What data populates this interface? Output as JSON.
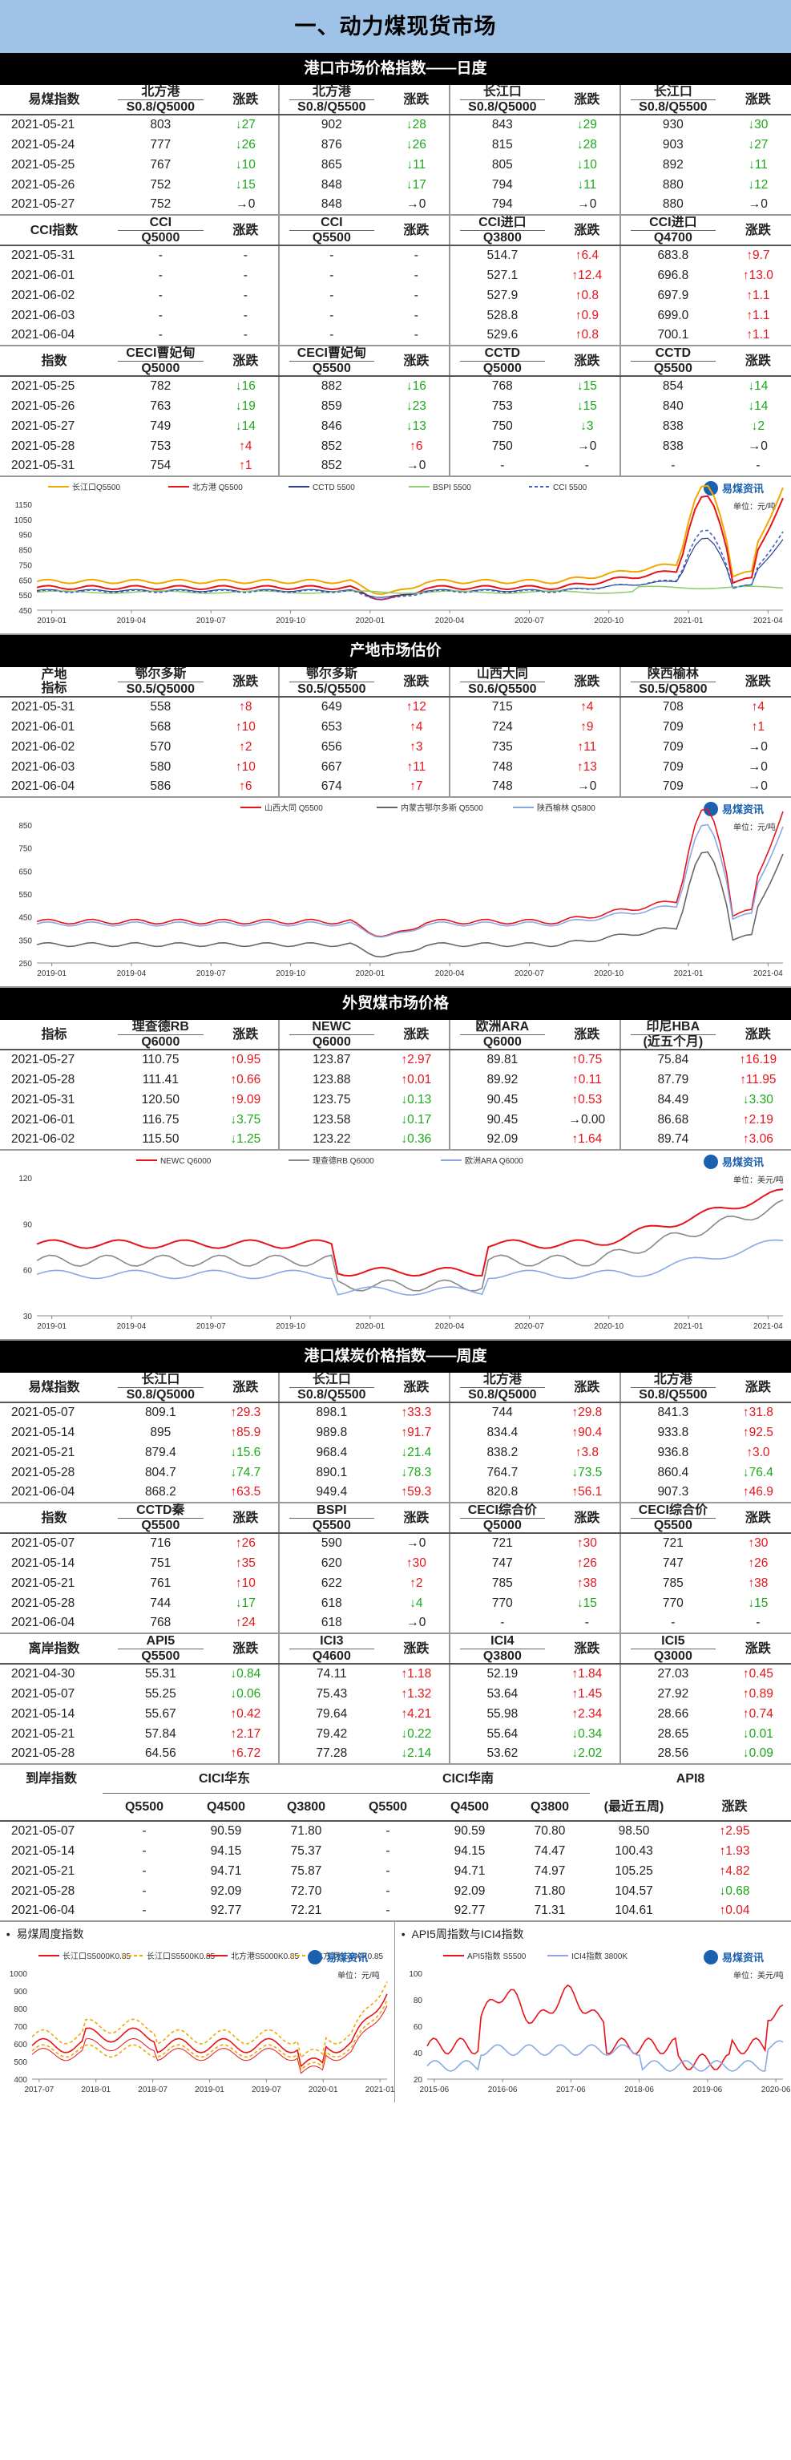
{
  "title": "一、动力煤现货市场",
  "sec1": {
    "bar": "港口市场价格指数——日度",
    "t1": {
      "h1": [
        "易煤指数",
        "北方港",
        "涨跌",
        "北方港",
        "涨跌",
        "长江口",
        "涨跌",
        "长江口",
        "涨跌"
      ],
      "h2": [
        "",
        "S0.8/Q5000",
        "",
        "S0.8/Q5500",
        "",
        "S0.8/Q5000",
        "",
        "S0.8/Q5500",
        ""
      ],
      "rows": [
        [
          "2021-05-21",
          "803",
          "↓27",
          "902",
          "↓28",
          "843",
          "↓29",
          "930",
          "↓30"
        ],
        [
          "2021-05-24",
          "777",
          "↓26",
          "876",
          "↓26",
          "815",
          "↓28",
          "903",
          "↓27"
        ],
        [
          "2021-05-25",
          "767",
          "↓10",
          "865",
          "↓11",
          "805",
          "↓10",
          "892",
          "↓11"
        ],
        [
          "2021-05-26",
          "752",
          "↓15",
          "848",
          "↓17",
          "794",
          "↓11",
          "880",
          "↓12"
        ],
        [
          "2021-05-27",
          "752",
          "→0",
          "848",
          "→0",
          "794",
          "→0",
          "880",
          "→0"
        ]
      ]
    },
    "t2": {
      "h1": [
        "CCI指数",
        "CCI",
        "涨跌",
        "CCI",
        "涨跌",
        "CCI进口",
        "涨跌",
        "CCI进口",
        "涨跌"
      ],
      "h2": [
        "",
        "Q5000",
        "",
        "Q5500",
        "",
        "Q3800",
        "",
        "Q4700",
        ""
      ],
      "rows": [
        [
          "2021-05-31",
          "-",
          "-",
          "-",
          "-",
          "514.7",
          "↑6.4",
          "683.8",
          "↑9.7"
        ],
        [
          "2021-06-01",
          "-",
          "-",
          "-",
          "-",
          "527.1",
          "↑12.4",
          "696.8",
          "↑13.0"
        ],
        [
          "2021-06-02",
          "-",
          "-",
          "-",
          "-",
          "527.9",
          "↑0.8",
          "697.9",
          "↑1.1"
        ],
        [
          "2021-06-03",
          "-",
          "-",
          "-",
          "-",
          "528.8",
          "↑0.9",
          "699.0",
          "↑1.1"
        ],
        [
          "2021-06-04",
          "-",
          "-",
          "-",
          "-",
          "529.6",
          "↑0.8",
          "700.1",
          "↑1.1"
        ]
      ]
    },
    "t3": {
      "h1": [
        "指数",
        "CECI曹妃甸",
        "涨跌",
        "CECI曹妃甸",
        "涨跌",
        "CCTD",
        "涨跌",
        "CCTD",
        "涨跌"
      ],
      "h2": [
        "",
        "Q5000",
        "",
        "Q5500",
        "",
        "Q5000",
        "",
        "Q5500",
        ""
      ],
      "rows": [
        [
          "2021-05-25",
          "782",
          "↓16",
          "882",
          "↓16",
          "768",
          "↓15",
          "854",
          "↓14"
        ],
        [
          "2021-05-26",
          "763",
          "↓19",
          "859",
          "↓23",
          "753",
          "↓15",
          "840",
          "↓14"
        ],
        [
          "2021-05-27",
          "749",
          "↓14",
          "846",
          "↓13",
          "750",
          "↓3",
          "838",
          "↓2"
        ],
        [
          "2021-05-28",
          "753",
          "↑4",
          "852",
          "↑6",
          "750",
          "→0",
          "838",
          "→0"
        ],
        [
          "2021-05-31",
          "754",
          "↑1",
          "852",
          "→0",
          "-",
          "-",
          "-",
          "-"
        ]
      ]
    }
  },
  "chart1": {
    "legend": [
      "长江口Q5500",
      "北方港 Q5500",
      "CCTD 5500",
      "BSPI 5500",
      "CCI 5500"
    ],
    "unit": "单位：元/吨",
    "logo": "易煤资讯",
    "yticks": [
      "1150",
      "1050",
      "950",
      "850",
      "750",
      "650",
      "550",
      "450"
    ],
    "xticks": [
      "2019-01",
      "2019-04",
      "2019-07",
      "2019-10",
      "2020-01",
      "2020-04",
      "2020-07",
      "2020-10",
      "2021-01",
      "2021-04"
    ]
  },
  "sec2": {
    "bar": "产地市场估价",
    "h1": [
      "产地",
      "鄂尔多斯",
      "涨跌",
      "鄂尔多斯",
      "涨跌",
      "山西大同",
      "涨跌",
      "陕西榆林",
      "涨跌"
    ],
    "h2": [
      "指标",
      "S0.5/Q5000",
      "",
      "S0.5/Q5500",
      "",
      "S0.6/Q5500",
      "",
      "S0.5/Q5800",
      ""
    ],
    "rows": [
      [
        "2021-05-31",
        "558",
        "↑8",
        "649",
        "↑12",
        "715",
        "↑4",
        "708",
        "↑4"
      ],
      [
        "2021-06-01",
        "568",
        "↑10",
        "653",
        "↑4",
        "724",
        "↑9",
        "709",
        "↑1"
      ],
      [
        "2021-06-02",
        "570",
        "↑2",
        "656",
        "↑3",
        "735",
        "↑11",
        "709",
        "→0"
      ],
      [
        "2021-06-03",
        "580",
        "↑10",
        "667",
        "↑11",
        "748",
        "↑13",
        "709",
        "→0"
      ],
      [
        "2021-06-04",
        "586",
        "↑6",
        "674",
        "↑7",
        "748",
        "→0",
        "709",
        "→0"
      ]
    ]
  },
  "chart2": {
    "legend": [
      "山西大同 Q5500",
      "内蒙古鄂尔多斯 Q5500",
      "陕西榆林 Q5800"
    ],
    "unit": "单位：元/吨",
    "logo": "易煤资讯",
    "yticks": [
      "850",
      "750",
      "650",
      "550",
      "450",
      "350",
      "250"
    ],
    "xticks": [
      "2019-01",
      "2019-04",
      "2019-07",
      "2019-10",
      "2020-01",
      "2020-04",
      "2020-07",
      "2020-10",
      "2021-01",
      "2021-04"
    ]
  },
  "sec3": {
    "bar": "外贸煤市场价格",
    "h1": [
      "指标",
      "理查德RB",
      "涨跌",
      "NEWC",
      "涨跌",
      "欧洲ARA",
      "涨跌",
      "印尼HBA",
      "涨跌"
    ],
    "h2": [
      "",
      "Q6000",
      "",
      "Q6000",
      "",
      "Q6000",
      "",
      "(近五个月)",
      ""
    ],
    "rows": [
      [
        "2021-05-27",
        "110.75",
        "↑0.95",
        "123.87",
        "↑2.97",
        "89.81",
        "↑0.75",
        "75.84",
        "↑16.19"
      ],
      [
        "2021-05-28",
        "111.41",
        "↑0.66",
        "123.88",
        "↑0.01",
        "89.92",
        "↑0.11",
        "87.79",
        "↑11.95"
      ],
      [
        "2021-05-31",
        "120.50",
        "↑9.09",
        "123.75",
        "↓0.13",
        "90.45",
        "↑0.53",
        "84.49",
        "↓3.30"
      ],
      [
        "2021-06-01",
        "116.75",
        "↓3.75",
        "123.58",
        "↓0.17",
        "90.45",
        "→0.00",
        "86.68",
        "↑2.19"
      ],
      [
        "2021-06-02",
        "115.50",
        "↓1.25",
        "123.22",
        "↓0.36",
        "92.09",
        "↑1.64",
        "89.74",
        "↑3.06"
      ]
    ]
  },
  "chart3": {
    "legend": [
      "NEWC Q6000",
      "理查德RB Q6000",
      "欧洲ARA Q6000"
    ],
    "unit": "单位：美元/吨",
    "logo": "易煤资讯",
    "yticks": [
      "120",
      "90",
      "60",
      "30"
    ],
    "xticks": [
      "2019-01",
      "2019-04",
      "2019-07",
      "2019-10",
      "2020-01",
      "2020-04",
      "2020-07",
      "2020-10",
      "2021-01",
      "2021-04"
    ]
  },
  "sec4": {
    "bar": "港口煤炭价格指数——周度",
    "t1": {
      "h1": [
        "易煤指数",
        "长江口",
        "涨跌",
        "长江口",
        "涨跌",
        "北方港",
        "涨跌",
        "北方港",
        "涨跌"
      ],
      "h2": [
        "",
        "S0.8/Q5000",
        "",
        "S0.8/Q5500",
        "",
        "S0.8/Q5000",
        "",
        "S0.8/Q5500",
        ""
      ],
      "rows": [
        [
          "2021-05-07",
          "809.1",
          "↑29.3",
          "898.1",
          "↑33.3",
          "744",
          "↑29.8",
          "841.3",
          "↑31.8"
        ],
        [
          "2021-05-14",
          "895",
          "↑85.9",
          "989.8",
          "↑91.7",
          "834.4",
          "↑90.4",
          "933.8",
          "↑92.5"
        ],
        [
          "2021-05-21",
          "879.4",
          "↓15.6",
          "968.4",
          "↓21.4",
          "838.2",
          "↑3.8",
          "936.8",
          "↑3.0"
        ],
        [
          "2021-05-28",
          "804.7",
          "↓74.7",
          "890.1",
          "↓78.3",
          "764.7",
          "↓73.5",
          "860.4",
          "↓76.4"
        ],
        [
          "2021-06-04",
          "868.2",
          "↑63.5",
          "949.4",
          "↑59.3",
          "820.8",
          "↑56.1",
          "907.3",
          "↑46.9"
        ]
      ]
    },
    "t2": {
      "h1": [
        "指数",
        "CCTD秦",
        "涨跌",
        "BSPI",
        "涨跌",
        "CECI综合价",
        "涨跌",
        "CECI综合价",
        "涨跌"
      ],
      "h2": [
        "",
        "Q5500",
        "",
        "Q5500",
        "",
        "Q5000",
        "",
        "Q5500",
        ""
      ],
      "rows": [
        [
          "2021-05-07",
          "716",
          "↑26",
          "590",
          "→0",
          "721",
          "↑30",
          "721",
          "↑30"
        ],
        [
          "2021-05-14",
          "751",
          "↑35",
          "620",
          "↑30",
          "747",
          "↑26",
          "747",
          "↑26"
        ],
        [
          "2021-05-21",
          "761",
          "↑10",
          "622",
          "↑2",
          "785",
          "↑38",
          "785",
          "↑38"
        ],
        [
          "2021-05-28",
          "744",
          "↓17",
          "618",
          "↓4",
          "770",
          "↓15",
          "770",
          "↓15"
        ],
        [
          "2021-06-04",
          "768",
          "↑24",
          "618",
          "→0",
          "-",
          "-",
          "-",
          "-"
        ]
      ]
    },
    "t3": {
      "h1": [
        "离岸指数",
        "API5",
        "涨跌",
        "ICI3",
        "涨跌",
        "ICI4",
        "涨跌",
        "ICI5",
        "涨跌"
      ],
      "h2": [
        "",
        "Q5500",
        "",
        "Q4600",
        "",
        "Q3800",
        "",
        "Q3000",
        ""
      ],
      "rows": [
        [
          "2021-04-30",
          "55.31",
          "↓0.84",
          "74.11",
          "↑1.18",
          "52.19",
          "↑1.84",
          "27.03",
          "↑0.45"
        ],
        [
          "2021-05-07",
          "55.25",
          "↓0.06",
          "75.43",
          "↑1.32",
          "53.64",
          "↑1.45",
          "27.92",
          "↑0.89"
        ],
        [
          "2021-05-14",
          "55.67",
          "↑0.42",
          "79.64",
          "↑4.21",
          "55.98",
          "↑2.34",
          "28.66",
          "↑0.74"
        ],
        [
          "2021-05-21",
          "57.84",
          "↑2.17",
          "79.42",
          "↓0.22",
          "55.64",
          "↓0.34",
          "28.65",
          "↓0.01"
        ],
        [
          "2021-05-28",
          "64.56",
          "↑6.72",
          "77.28",
          "↓2.14",
          "53.62",
          "↓2.02",
          "28.56",
          "↓0.09"
        ]
      ]
    },
    "t4": {
      "h1a": "到岸指数",
      "h1b": "CICI华东",
      "h1c": "CICI华南",
      "h1d": "API8",
      "h2": [
        "",
        "Q5500",
        "Q4500",
        "Q3800",
        "Q5500",
        "Q4500",
        "Q3800",
        "(最近五周)",
        "涨跌"
      ],
      "rows": [
        [
          "2021-05-07",
          "-",
          "90.59",
          "71.80",
          "-",
          "90.59",
          "70.80",
          "98.50",
          "↑2.95"
        ],
        [
          "2021-05-14",
          "-",
          "94.15",
          "75.37",
          "-",
          "94.15",
          "74.47",
          "100.43",
          "↑1.93"
        ],
        [
          "2021-05-21",
          "-",
          "94.71",
          "75.87",
          "-",
          "94.71",
          "74.97",
          "105.25",
          "↑4.82"
        ],
        [
          "2021-05-28",
          "-",
          "92.09",
          "72.70",
          "-",
          "92.09",
          "71.80",
          "104.57",
          "↓0.68"
        ],
        [
          "2021-06-04",
          "-",
          "92.77",
          "72.21",
          "-",
          "92.77",
          "71.31",
          "104.61",
          "↑0.04"
        ]
      ]
    }
  },
  "chart4": {
    "label": "易煤周度指数",
    "legend": [
      "长江口S5000K0.85",
      "长江口S5500K0.85",
      "北方港S5000K0.85",
      "北方港S5500K0.85"
    ],
    "unit": "单位：元/吨",
    "logo": "易煤资讯",
    "yticks": [
      "1000",
      "900",
      "800",
      "700",
      "600",
      "500",
      "400"
    ],
    "xticks": [
      "2017-07",
      "2018-01",
      "2018-07",
      "2019-01",
      "2019-07",
      "2020-01",
      "2021-01"
    ]
  },
  "chart5": {
    "label": "API5周指数与ICI4指数",
    "legend": [
      "API5指数 S5500",
      "ICI4指数 3800K"
    ],
    "unit": "单位：美元/吨",
    "logo": "易煤资讯",
    "yticks": [
      "100",
      "80",
      "60",
      "40",
      "20"
    ],
    "xticks": [
      "2015-06",
      "2016-06",
      "2017-06",
      "2018-06",
      "2019-06",
      "2020-06"
    ]
  }
}
